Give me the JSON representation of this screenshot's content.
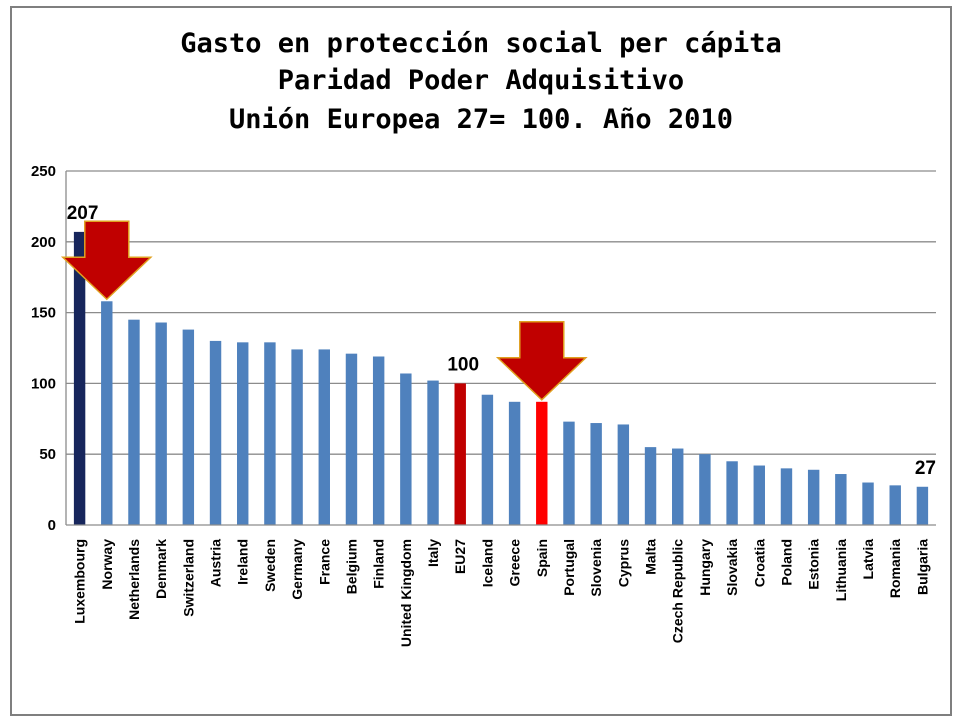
{
  "chart_data": {
    "type": "bar",
    "title": [
      "Gasto en protección social per cápita",
      "Paridad Poder Adquisitivo",
      "Unión Europea 27= 100. Año 2010"
    ],
    "xlabel": "",
    "ylabel": "",
    "ylim": [
      0,
      250
    ],
    "yticks": [
      "0",
      "50",
      "100",
      "150",
      "200",
      "250"
    ],
    "grid": true,
    "legend": "none",
    "categories": [
      "Luxembourg",
      "Norway",
      "Netherlands",
      "Denmark",
      "Switzerland",
      "Austria",
      "Ireland",
      "Sweden",
      "Germany",
      "France",
      "Belgium",
      "Finland",
      "United Kingdom",
      "Italy",
      "EU27",
      "Iceland",
      "Greece",
      "Spain",
      "Portugal",
      "Slovenia",
      "Cyprus",
      "Malta",
      "Czech Republic",
      "Hungary",
      "Slovakia",
      "Croatia",
      "Poland",
      "Estonia",
      "Lithuania",
      "Latvia",
      "Romania",
      "Bulgaria"
    ],
    "values": [
      207,
      158,
      145,
      143,
      138,
      130,
      129,
      129,
      124,
      124,
      121,
      119,
      107,
      102,
      100,
      92,
      87,
      87,
      73,
      72,
      71,
      55,
      54,
      50,
      45,
      42,
      40,
      39,
      36,
      30,
      28,
      27
    ],
    "bar_colors": {
      "default": "#4f81bd",
      "Luxembourg": "#17265c",
      "EU27": "#c00000",
      "Spain": "#ff0000"
    },
    "data_labels": [
      {
        "category": "Luxembourg",
        "text": "207"
      },
      {
        "category": "EU27",
        "text": "100"
      },
      {
        "category": "Bulgaria",
        "text": "27"
      }
    ],
    "annotations": [
      {
        "type": "down-arrow",
        "category": "Norway",
        "color": "#c00000"
      },
      {
        "type": "down-arrow",
        "category": "Spain",
        "color": "#c00000"
      }
    ]
  }
}
